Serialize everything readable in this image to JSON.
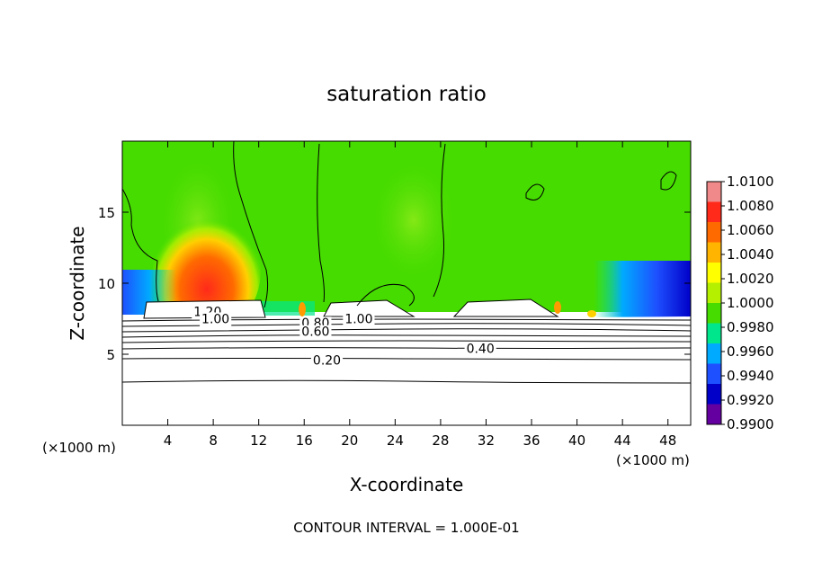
{
  "chart_data": {
    "type": "heatmap",
    "title": "saturation ratio",
    "xlabel": "X-coordinate",
    "ylabel": "Z-coordinate",
    "x_unit_left": "(×1000 m)",
    "x_unit_right": "(×1000 m)",
    "xlim": [
      0,
      50
    ],
    "ylim": [
      0,
      20
    ],
    "x_ticks": [
      4,
      8,
      12,
      16,
      20,
      24,
      28,
      32,
      36,
      40,
      44,
      48
    ],
    "x_tick_labels": [
      "4",
      "8",
      "12",
      "16",
      "20",
      "24",
      "28",
      "32",
      "36",
      "40",
      "44",
      "48"
    ],
    "y_ticks": [
      5,
      10,
      15
    ],
    "y_tick_labels": [
      "5",
      "10",
      "15"
    ],
    "colorbar": {
      "min": 0.99,
      "max": 1.01,
      "tick_values": [
        1.01,
        1.008,
        1.006,
        1.004,
        1.002,
        1.0,
        0.998,
        0.996,
        0.994,
        0.992,
        0.99
      ],
      "tick_labels": [
        "1.0100",
        "1.0080",
        "1.0060",
        "1.0040",
        "1.0020",
        "1.0000",
        "0.9980",
        "0.9960",
        "0.9940",
        "0.9920",
        "0.9900"
      ],
      "colors": [
        "#f08a8a",
        "#ff2a1a",
        "#ff6a00",
        "#ffb400",
        "#ffff00",
        "#b4f000",
        "#46dc00",
        "#00e68c",
        "#00aaff",
        "#1e50ff",
        "#0000c8",
        "#6400a0"
      ]
    },
    "contour_labels": [
      {
        "text": "1.20",
        "x": 7.5,
        "z": 8.0
      },
      {
        "text": "1.00",
        "x": 8.2,
        "z": 7.5
      },
      {
        "text": "0.80",
        "x": 17.0,
        "z": 7.2
      },
      {
        "text": "0.60",
        "x": 17.0,
        "z": 6.6
      },
      {
        "text": "1.00",
        "x": 20.8,
        "z": 7.5
      },
      {
        "text": "0.40",
        "x": 31.5,
        "z": 5.4
      },
      {
        "text": "0.20",
        "x": 18.0,
        "z": 4.6
      }
    ],
    "grid": false
  },
  "footer": {
    "contour_interval": "CONTOUR INTERVAL = 1.000E-01"
  }
}
